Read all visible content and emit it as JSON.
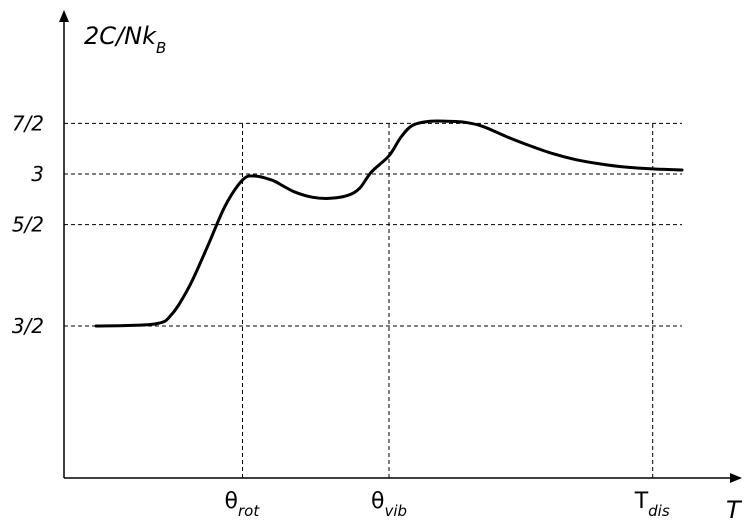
{
  "chart_data": {
    "type": "line",
    "title": "",
    "ylabel": {
      "main": "2C/Nk",
      "sub": "B"
    },
    "xlabel": "T",
    "yticks": [
      {
        "value": 1.5,
        "label": "3/2"
      },
      {
        "value": 2.5,
        "label": "5/2"
      },
      {
        "value": 3.0,
        "label": "3"
      },
      {
        "value": 3.5,
        "label": "7/2"
      }
    ],
    "xticks": [
      {
        "value": 0.25,
        "main": "θ",
        "sub": "rot"
      },
      {
        "value": 0.5,
        "main": "θ",
        "sub": "vib"
      },
      {
        "value": 0.95,
        "main": "T",
        "sub": "dis"
      }
    ],
    "xlim": [
      0,
      1
    ],
    "ylim": [
      0,
      4
    ],
    "grid": "dashed",
    "series": [
      {
        "x": [
          0.0,
          0.1,
          0.13,
          0.16,
          0.19,
          0.22,
          0.25,
          0.27,
          0.3,
          0.32,
          0.34,
          0.37,
          0.4,
          0.43,
          0.45,
          0.47,
          0.5,
          0.52,
          0.54,
          0.57,
          0.6,
          0.63,
          0.66,
          0.7,
          0.74,
          0.78,
          0.82,
          0.86,
          0.9,
          0.95,
          1.0
        ],
        "y": [
          1.5,
          1.52,
          1.62,
          1.9,
          2.28,
          2.68,
          2.94,
          2.98,
          2.94,
          2.88,
          2.82,
          2.77,
          2.76,
          2.79,
          2.86,
          3.02,
          3.18,
          3.36,
          3.48,
          3.52,
          3.52,
          3.51,
          3.47,
          3.37,
          3.28,
          3.2,
          3.14,
          3.1,
          3.07,
          3.05,
          3.04
        ]
      }
    ]
  }
}
